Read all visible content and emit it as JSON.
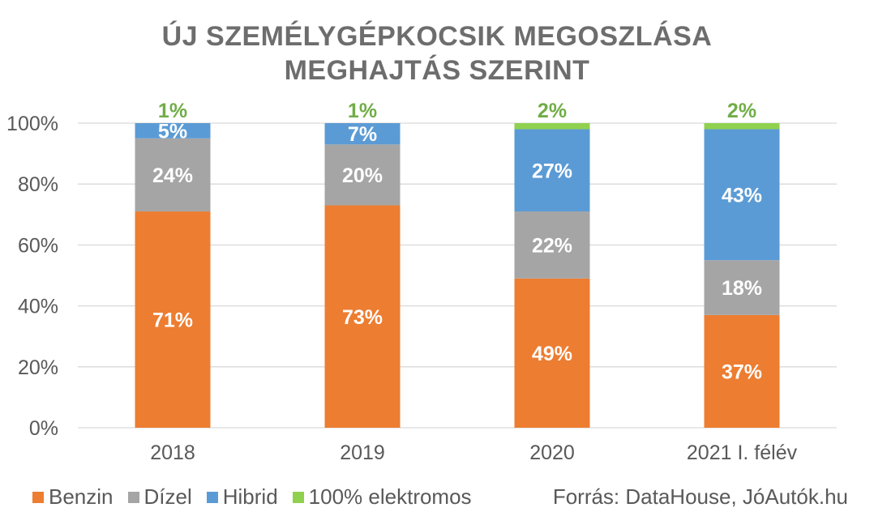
{
  "chart_data": {
    "type": "bar",
    "stacked": true,
    "title": "ÚJ SZEMÉLYGÉPKOCSIK MEGOSZLÁSA MEGHAJTÁS SZERINT",
    "title_lines": [
      "ÚJ SZEMÉLYGÉPKOCSIK MEGOSZLÁSA",
      "MEGHAJTÁS SZERINT"
    ],
    "categories": [
      "2018",
      "2019",
      "2020",
      "2021 I. félév"
    ],
    "series": [
      {
        "name": "Benzin",
        "color": "#ed7d31",
        "label_color": "#ffffff",
        "values": [
          71,
          73,
          49,
          37
        ],
        "labels": [
          "71%",
          "73%",
          "49%",
          "37%"
        ]
      },
      {
        "name": "Dízel",
        "color": "#a5a5a5",
        "label_color": "#ffffff",
        "values": [
          24,
          20,
          22,
          18
        ],
        "labels": [
          "24%",
          "20%",
          "22%",
          "18%"
        ]
      },
      {
        "name": "Hibrid",
        "color": "#5b9bd5",
        "label_color": "#ffffff",
        "values": [
          5,
          7,
          27,
          43
        ],
        "labels": [
          "5%",
          "7%",
          "27%",
          "43%"
        ]
      },
      {
        "name": "100% elektromos",
        "color": "#8fd14f",
        "label_color": "#70ad47",
        "values": [
          1,
          1,
          2,
          2
        ],
        "labels": [
          "1%",
          "1%",
          "2%",
          "2%"
        ]
      }
    ],
    "ylim": [
      0,
      100
    ],
    "yticks": [
      "0%",
      "20%",
      "40%",
      "60%",
      "80%",
      "100%"
    ],
    "ytick_values": [
      0,
      20,
      40,
      60,
      80,
      100
    ],
    "grid": true,
    "legend_position": "bottom-left",
    "source": "Forrás: DataHouse, JóAutók.hu"
  }
}
